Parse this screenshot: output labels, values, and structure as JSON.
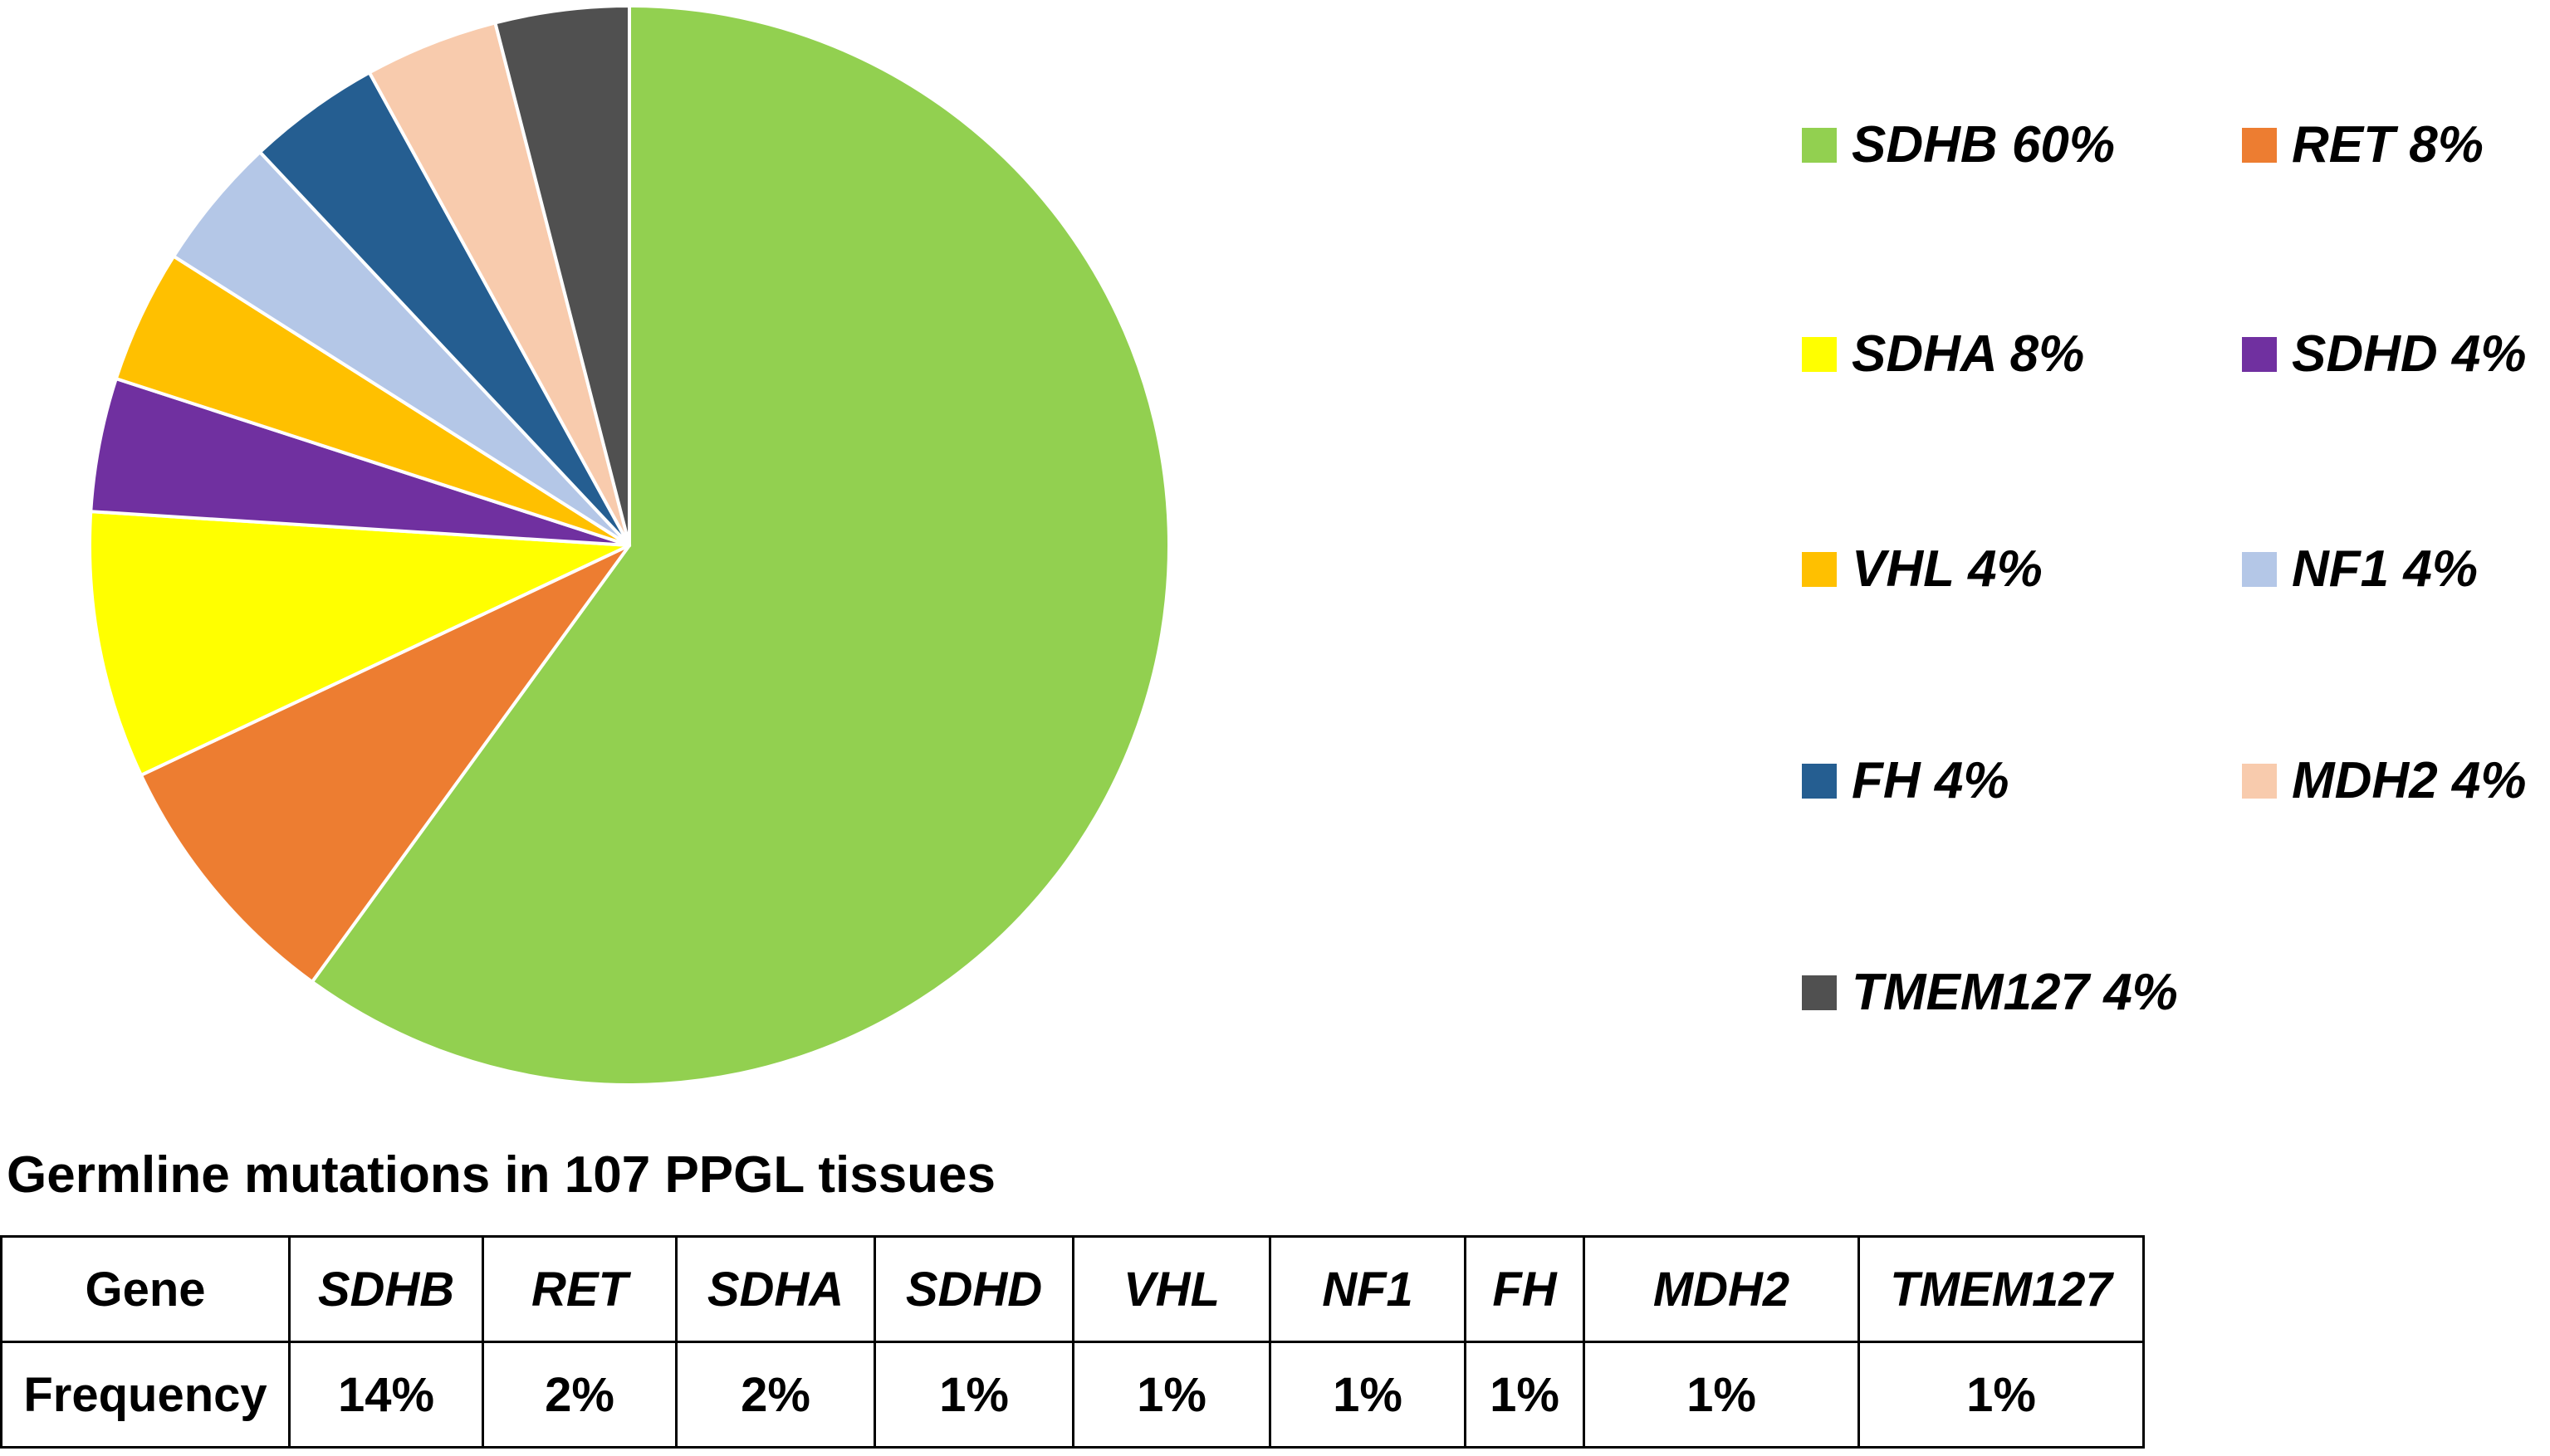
{
  "chart_data": {
    "type": "pie",
    "title": "",
    "slices": [
      {
        "label": "SDHB",
        "value": 60,
        "legend": "SDHB 60%",
        "color": "#92D050"
      },
      {
        "label": "RET",
        "value": 8,
        "legend": "RET 8%",
        "color": "#ED7D31"
      },
      {
        "label": "SDHA",
        "value": 8,
        "legend": "SDHA 8%",
        "color": "#FFFF00"
      },
      {
        "label": "SDHD",
        "value": 4,
        "legend": "SDHD 4%",
        "color": "#7030A0"
      },
      {
        "label": "VHL",
        "value": 4,
        "legend": "VHL 4%",
        "color": "#FFC000"
      },
      {
        "label": "NF1",
        "value": 4,
        "legend": "NF1 4%",
        "color": "#B4C7E7"
      },
      {
        "label": "FH",
        "value": 4,
        "legend": "FH 4%",
        "color": "#255E91"
      },
      {
        "label": "MDH2",
        "value": 4,
        "legend": "MDH2 4%",
        "color": "#F8CBAD"
      },
      {
        "label": "TMEM127",
        "value": 4,
        "legend": "TMEM127 4%",
        "color": "#505050"
      }
    ],
    "legend_position": "right",
    "slice_border": "#ffffff"
  },
  "table": {
    "title": "Germline mutations in 107 PPGL tissues",
    "row_headers": [
      "Gene",
      "Frequency"
    ],
    "genes": [
      "SDHB",
      "RET",
      "SDHA",
      "SDHD",
      "VHL",
      "NF1",
      "FH",
      "MDH2",
      "TMEM127"
    ],
    "frequencies": [
      "14%",
      "2%",
      "2%",
      "1%",
      "1%",
      "1%",
      "1%",
      "1%",
      "1%"
    ]
  }
}
